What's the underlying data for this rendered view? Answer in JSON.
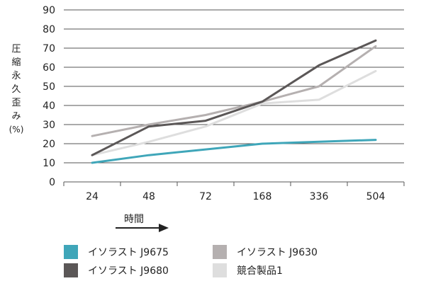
{
  "chart_data": {
    "type": "line",
    "categories": [
      "24",
      "48",
      "72",
      "168",
      "336",
      "504"
    ],
    "ylabel_chars": [
      "圧",
      "縮",
      "永",
      "久",
      "歪",
      "み"
    ],
    "ylabel_unit": "(%)",
    "xlabel": "時間",
    "ylim": [
      0,
      90
    ],
    "yticks": [
      0,
      10,
      20,
      30,
      40,
      50,
      60,
      70,
      80,
      90
    ],
    "grid": true,
    "series": [
      {
        "name": "競合製品1",
        "color": "#dedede",
        "values": [
          14,
          21,
          29,
          41,
          43,
          58
        ]
      },
      {
        "name": "イソラスト J9630",
        "color": "#b5b0b0",
        "values": [
          24,
          30,
          35,
          42,
          50,
          71
        ]
      },
      {
        "name": "イソラスト J9680",
        "color": "#5b5757",
        "values": [
          14,
          29,
          32,
          42,
          61,
          74
        ]
      },
      {
        "name": "イソラスト J9675",
        "color": "#3fa6b9",
        "values": [
          10,
          14,
          17,
          20,
          21,
          22
        ]
      }
    ]
  },
  "legend": {
    "j9675": "イソラスト J9675",
    "j9630": "イソラスト J9630",
    "j9680": "イソラスト J9680",
    "comp1": "競合製品1"
  },
  "colors": {
    "j9675": "#3fa6b9",
    "j9630": "#b5b0b0",
    "j9680": "#5b5757",
    "comp1": "#dedede"
  }
}
